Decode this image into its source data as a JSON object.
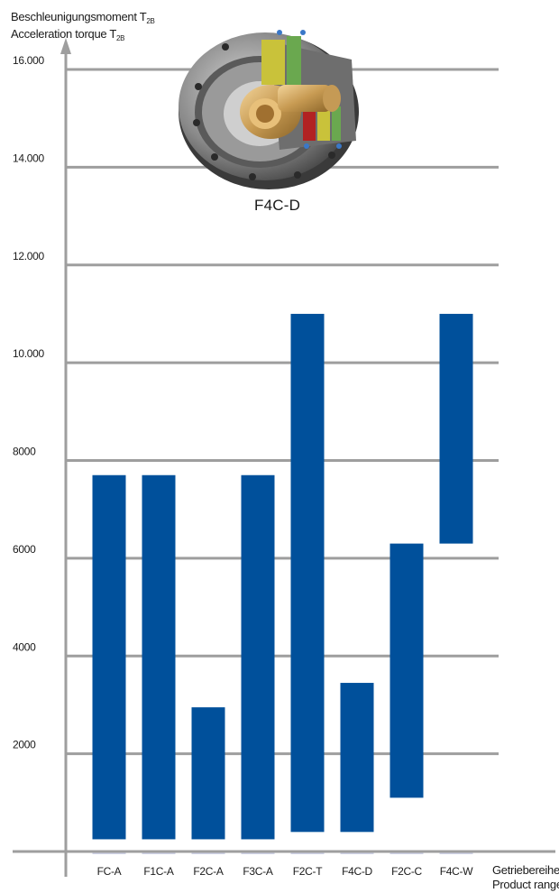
{
  "chart_data": {
    "type": "bar",
    "ylabel_line1": "Beschleunigungsmoment T",
    "ylabel_line1_sub": "2B",
    "ylabel_line2": "Acceleration torque T",
    "ylabel_line2_sub": "2B",
    "xlabel_line1": "Getriebereihe",
    "xlabel_line2": "Product range",
    "yticks": [
      {
        "value": 2000,
        "label": "2000"
      },
      {
        "value": 4000,
        "label": "4000"
      },
      {
        "value": 6000,
        "label": "6000"
      },
      {
        "value": 8000,
        "label": "8000"
      },
      {
        "value": 10000,
        "label": "10.000"
      },
      {
        "value": 12000,
        "label": "12.000"
      },
      {
        "value": 14000,
        "label": "14.000"
      },
      {
        "value": 16000,
        "label": "16.000"
      }
    ],
    "ylim": [
      0,
      16000
    ],
    "grid": true,
    "bar_color": "#00509b",
    "axis_color": "#9e9e9e",
    "categories": [
      "FC-A",
      "F1C-A",
      "F2C-A",
      "F3C-A",
      "F2C-T",
      "F4C-D",
      "F2C-C",
      "F4C-W"
    ],
    "ranges": [
      {
        "min": 250,
        "max": 7700
      },
      {
        "min": 250,
        "max": 7700
      },
      {
        "min": 250,
        "max": 2950
      },
      {
        "min": 250,
        "max": 7700
      },
      {
        "min": 400,
        "max": 11000
      },
      {
        "min": 400,
        "max": 3450
      },
      {
        "min": 1100,
        "max": 6300
      },
      {
        "min": 6300,
        "max": 11000
      }
    ]
  },
  "product_image": {
    "label": "F4C-D",
    "icon": "gearbox-cutaway-image"
  }
}
